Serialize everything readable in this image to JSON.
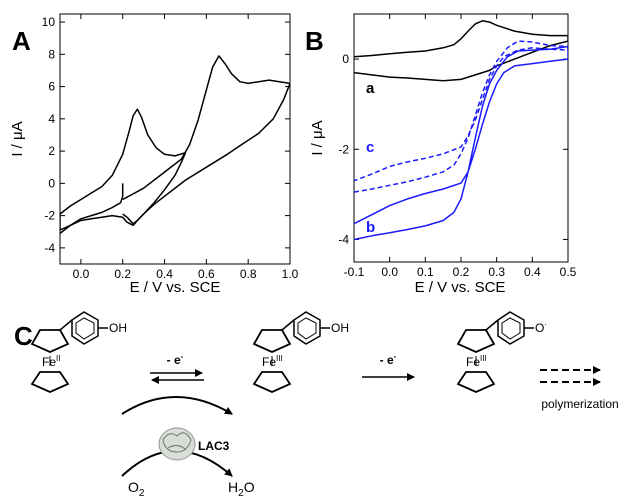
{
  "panels": {
    "A": {
      "letter": "A"
    },
    "B": {
      "letter": "B"
    },
    "C": {
      "letter": "C"
    }
  },
  "chart_data": [
    {
      "id": "A",
      "type": "line",
      "xlabel": "E / V vs. SCE",
      "ylabel": "I / μA",
      "xlim": [
        -0.1,
        1.0
      ],
      "ylim": [
        -5,
        10.5
      ],
      "xticks": [
        0.0,
        0.2,
        0.4,
        0.6,
        0.8,
        1.0
      ],
      "xtick_labels": [
        "0.0",
        "0.2",
        "0.4",
        "0.6",
        "0.8",
        "1.0"
      ],
      "yticks": [
        -4,
        -2,
        0,
        2,
        4,
        6,
        8,
        10
      ],
      "ytick_labels": [
        "-4",
        "-2",
        "0",
        "2",
        "4",
        "6",
        "8",
        "10"
      ],
      "series": [
        {
          "color": "#000000",
          "x": [
            0.2,
            0.2,
            0.19,
            0.15,
            0.1,
            0.05,
            0.0,
            -0.05,
            -0.1,
            -0.1,
            -0.05,
            0.0,
            0.05,
            0.1,
            0.15,
            0.2,
            0.23,
            0.25,
            0.27,
            0.29,
            0.32,
            0.36,
            0.4,
            0.45,
            0.5,
            0.48,
            0.45,
            0.4,
            0.35,
            0.3,
            0.27,
            0.25,
            0.22,
            0.2
          ],
          "y": [
            0.0,
            -0.8,
            -1.2,
            -1.5,
            -1.8,
            -2.0,
            -2.2,
            -2.6,
            -2.9,
            -1.9,
            -1.4,
            -1.0,
            -0.6,
            -0.2,
            0.5,
            1.8,
            3.2,
            4.2,
            4.6,
            4.1,
            3.0,
            2.2,
            1.8,
            1.7,
            1.9,
            1.3,
            0.5,
            -0.4,
            -1.2,
            -1.9,
            -2.3,
            -2.5,
            -2.1,
            -1.9
          ]
        },
        {
          "color": "#000000",
          "x": [
            0.2,
            0.3,
            0.4,
            0.48,
            0.52,
            0.56,
            0.6,
            0.63,
            0.66,
            0.69,
            0.72,
            0.76,
            0.8,
            0.85,
            0.9,
            0.95,
            1.0,
            0.97,
            0.92,
            0.85,
            0.78,
            0.7,
            0.6,
            0.5,
            0.4,
            0.35,
            0.3,
            0.27,
            0.25,
            0.22,
            0.2,
            0.15,
            0.1,
            0.05,
            0.0,
            -0.05,
            -0.1
          ],
          "y": [
            -1.0,
            -0.3,
            0.7,
            1.5,
            2.4,
            3.9,
            5.8,
            7.2,
            7.9,
            7.4,
            6.8,
            6.3,
            6.2,
            6.3,
            6.4,
            6.3,
            6.2,
            5.2,
            4.0,
            3.1,
            2.5,
            1.8,
            1.0,
            0.2,
            -0.8,
            -1.3,
            -1.9,
            -2.3,
            -2.6,
            -2.4,
            -2.1,
            -2.0,
            -2.1,
            -2.2,
            -2.3,
            -2.6,
            -3.1
          ]
        }
      ]
    },
    {
      "id": "B",
      "type": "line",
      "xlabel": "E / V vs. SCE",
      "ylabel": "I / μA",
      "xlim": [
        -0.1,
        0.5
      ],
      "ylim": [
        -4.5,
        1.0
      ],
      "xticks": [
        -0.1,
        0.0,
        0.1,
        0.2,
        0.3,
        0.4,
        0.5
      ],
      "xtick_labels": [
        "-0.1",
        "0.0",
        "0.1",
        "0.2",
        "0.3",
        "0.4",
        "0.5"
      ],
      "yticks": [
        -4,
        -2,
        0
      ],
      "ytick_labels": [
        "-4",
        "-2",
        "0"
      ],
      "series": [
        {
          "name": "a",
          "color": "#000000",
          "dash": false,
          "x": [
            -0.1,
            -0.05,
            0.0,
            0.05,
            0.1,
            0.15,
            0.18,
            0.2,
            0.22,
            0.24,
            0.26,
            0.28,
            0.3,
            0.35,
            0.4,
            0.45,
            0.5,
            0.5,
            0.45,
            0.4,
            0.35,
            0.3,
            0.28,
            0.26,
            0.24,
            0.22,
            0.2,
            0.15,
            0.1,
            0.05,
            0.0,
            -0.05,
            -0.1
          ],
          "y": [
            0.05,
            0.08,
            0.12,
            0.15,
            0.18,
            0.25,
            0.32,
            0.45,
            0.62,
            0.78,
            0.85,
            0.82,
            0.75,
            0.62,
            0.55,
            0.52,
            0.52,
            0.4,
            0.3,
            0.15,
            0.0,
            -0.15,
            -0.25,
            -0.3,
            -0.35,
            -0.4,
            -0.45,
            -0.48,
            -0.45,
            -0.42,
            -0.4,
            -0.35,
            -0.3
          ]
        },
        {
          "name": "c",
          "color": "#1a1aff",
          "dash": true,
          "x": [
            -0.1,
            -0.05,
            0.0,
            0.05,
            0.1,
            0.15,
            0.18,
            0.2,
            0.22,
            0.24,
            0.26,
            0.28,
            0.3,
            0.33,
            0.36,
            0.4,
            0.45,
            0.5,
            0.5,
            0.45,
            0.4,
            0.36,
            0.32,
            0.3,
            0.28,
            0.26,
            0.24,
            0.22,
            0.2,
            0.15,
            0.1,
            0.05,
            0.0,
            -0.05,
            -0.1
          ],
          "y": [
            -2.95,
            -2.88,
            -2.8,
            -2.72,
            -2.62,
            -2.5,
            -2.35,
            -2.1,
            -1.75,
            -1.25,
            -0.75,
            -0.35,
            -0.05,
            0.25,
            0.4,
            0.38,
            0.3,
            0.28,
            0.2,
            0.22,
            0.25,
            0.2,
            0.05,
            -0.15,
            -0.45,
            -0.9,
            -1.35,
            -1.7,
            -1.95,
            -2.1,
            -2.2,
            -2.28,
            -2.38,
            -2.55,
            -2.7
          ]
        },
        {
          "name": "b",
          "color": "#1a1aff",
          "dash": false,
          "x": [
            -0.1,
            -0.05,
            0.0,
            0.05,
            0.1,
            0.15,
            0.18,
            0.2,
            0.22,
            0.24,
            0.26,
            0.28,
            0.3,
            0.33,
            0.36,
            0.4,
            0.45,
            0.5,
            0.5,
            0.45,
            0.4,
            0.35,
            0.32,
            0.3,
            0.28,
            0.26,
            0.24,
            0.22,
            0.2,
            0.15,
            0.1,
            0.05,
            0.0,
            -0.05,
            -0.1
          ],
          "y": [
            -4.0,
            -3.92,
            -3.85,
            -3.78,
            -3.7,
            -3.58,
            -3.4,
            -3.1,
            -2.5,
            -1.75,
            -1.05,
            -0.55,
            -0.25,
            0.05,
            0.18,
            0.2,
            0.22,
            0.28,
            0.0,
            -0.05,
            -0.1,
            -0.15,
            -0.3,
            -0.55,
            -0.95,
            -1.45,
            -2.0,
            -2.5,
            -2.75,
            -2.88,
            -2.98,
            -3.1,
            -3.25,
            -3.45,
            -3.65
          ]
        }
      ],
      "curve_labels": [
        {
          "text": "a",
          "color": "#000000"
        },
        {
          "text": "c",
          "color": "#1a1aff"
        },
        {
          "text": "b",
          "color": "#1a1aff"
        }
      ]
    }
  ],
  "scheme": {
    "fe1": {
      "base": "Fe",
      "sup": "II"
    },
    "fe2": {
      "base": "Fe",
      "sup": "III"
    },
    "fe3": {
      "base": "Fe",
      "sup": "III"
    },
    "oh1": "OH",
    "oh2": "OH",
    "oradical": {
      "base": "O",
      "sup": "·"
    },
    "step1": {
      "text": "- e",
      "sup": "-"
    },
    "step2": {
      "text": "- e",
      "sup": "-"
    },
    "polymerization": "polymerization",
    "enzyme": "LAC3",
    "o2": {
      "base": "O",
      "sub": "2"
    },
    "h2o": {
      "base": "H",
      "sub": "2",
      "end": "O"
    }
  }
}
